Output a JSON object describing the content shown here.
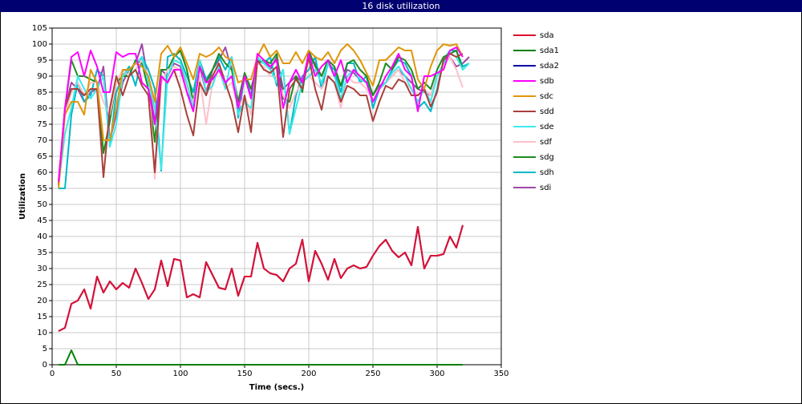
{
  "chart_data": {
    "type": "line",
    "title": "16 disk utilization",
    "x_label": "Time (secs.)",
    "y_label": "Utilization",
    "xlim": [
      0,
      350
    ],
    "xticks": [
      0,
      50,
      100,
      150,
      200,
      250,
      300,
      350
    ],
    "ylim": [
      0,
      105
    ],
    "yticks": [
      0,
      5,
      10,
      15,
      20,
      25,
      30,
      35,
      40,
      45,
      50,
      55,
      60,
      65,
      70,
      75,
      80,
      85,
      90,
      95,
      100,
      105
    ],
    "grid": true,
    "legend": "right",
    "x": [
      5,
      10,
      15,
      20,
      25,
      30,
      35,
      40,
      45,
      50,
      55,
      60,
      65,
      70,
      75,
      80,
      85,
      90,
      95,
      100,
      105,
      110,
      115,
      120,
      125,
      130,
      135,
      140,
      145,
      150,
      155,
      160,
      165,
      170,
      175,
      180,
      185,
      190,
      195,
      200,
      205,
      210,
      215,
      220,
      225,
      230,
      235,
      240,
      245,
      250,
      255,
      260,
      265,
      270,
      275,
      280,
      285,
      290,
      295,
      300,
      305,
      310,
      315,
      320,
      325
    ],
    "series": [
      {
        "name": "sda",
        "color": "#e0102f",
        "values": [
          10.5,
          11.5,
          19,
          20,
          23.5,
          17.5,
          27.5,
          22.5,
          26,
          23.5,
          25.5,
          24,
          30,
          25.5,
          20.5,
          23.5,
          32.5,
          24.5,
          33,
          32.5,
          21,
          22,
          21,
          32,
          28,
          24,
          23.5,
          30,
          21.5,
          27.5,
          27.5,
          38,
          30,
          28.5,
          28,
          26,
          30,
          31.5,
          39,
          26,
          35.5,
          31.5,
          26.5,
          33,
          27,
          30,
          31,
          30,
          30.5,
          34,
          37,
          39,
          35.5,
          33.5,
          35,
          31,
          43,
          30,
          34,
          34,
          34.5,
          40,
          36.5,
          43.5,
          null
        ]
      },
      {
        "name": "sda1",
        "color": "#008000",
        "values": [
          0,
          0,
          4.5,
          0,
          0,
          0,
          0,
          0,
          0,
          0,
          0,
          0,
          0,
          0,
          0,
          0,
          0,
          0,
          0,
          0,
          0,
          0,
          0,
          0,
          0,
          0,
          0,
          0,
          0,
          0,
          0,
          0,
          0,
          0,
          0,
          0,
          0,
          0,
          0,
          0,
          0,
          0,
          0,
          0,
          0,
          0,
          0,
          0,
          0,
          0,
          0,
          0,
          0,
          0,
          0,
          0,
          0,
          0,
          0,
          0,
          0,
          0,
          0,
          0,
          null
        ]
      },
      {
        "name": "sda2",
        "color": "#0000a8",
        "values": [
          10.5,
          11.5,
          19,
          20,
          23.5,
          17.5,
          27.5,
          22.5,
          26,
          23.5,
          25.5,
          24,
          30,
          25.5,
          20.5,
          23.5,
          32.5,
          24.5,
          33,
          32.5,
          21,
          22,
          21,
          32,
          28,
          24,
          23.5,
          30,
          21.5,
          27.5,
          27.5,
          38,
          30,
          28.5,
          28,
          26,
          30,
          31.5,
          39,
          26,
          35.5,
          31.5,
          26.5,
          33,
          27,
          30,
          31,
          30,
          30.5,
          34,
          37,
          39,
          35.5,
          33.5,
          35,
          31,
          43,
          30,
          34,
          34,
          34.5,
          40,
          36.5,
          43.5,
          null
        ]
      },
      {
        "name": "sdb",
        "color": "#ff00ff",
        "values": [
          57,
          80,
          96,
          97.5,
          90,
          98,
          93,
          85,
          85,
          97.5,
          96,
          97,
          97,
          88,
          86,
          75,
          90,
          88,
          92,
          92,
          85,
          79,
          93,
          88,
          89,
          92,
          88,
          90,
          80,
          90,
          83,
          97,
          95,
          93,
          95,
          80,
          88,
          92,
          88,
          97,
          90,
          93,
          95,
          90,
          95,
          88,
          92,
          90,
          88,
          82,
          86,
          90,
          93,
          97,
          92,
          90,
          79,
          90,
          90,
          91,
          92,
          98,
          99,
          96,
          null
        ]
      },
      {
        "name": "sdc",
        "color": "#e0960a",
        "values": [
          55,
          78,
          82,
          82,
          78,
          92,
          88,
          70,
          70,
          80,
          92,
          92,
          94,
          93,
          90,
          82,
          97,
          99.5,
          96,
          99,
          94,
          89,
          97,
          96,
          97,
          99,
          96,
          95,
          88,
          89,
          89,
          96,
          100,
          96,
          98,
          94,
          94,
          97.5,
          94,
          98,
          96,
          95,
          97.5,
          94,
          98,
          100,
          98,
          95,
          91,
          87,
          95,
          95,
          97,
          99,
          98,
          98,
          89,
          86,
          93,
          98,
          100,
          99.5,
          100,
          96,
          null
        ]
      },
      {
        "name": "sdd",
        "color": "#a8403a",
        "values": [
          56,
          80,
          86,
          86,
          84,
          86,
          86,
          58.5,
          80,
          90,
          84,
          90,
          92,
          87,
          84,
          60,
          90,
          88,
          92,
          86,
          78,
          71.5,
          88,
          84,
          90,
          94,
          88,
          82,
          72.5,
          84,
          72.5,
          95,
          92,
          91,
          93,
          71,
          86,
          89,
          86,
          96,
          86,
          79.5,
          90,
          88,
          82,
          87,
          86,
          84,
          84,
          76,
          82,
          87,
          86,
          89,
          88,
          84,
          84,
          86,
          80.5,
          85,
          95,
          97,
          96,
          97,
          null
        ]
      },
      {
        "name": "sde",
        "color": "#40e8e8",
        "values": [
          56,
          72,
          80,
          90,
          86,
          83,
          86,
          90,
          68,
          75,
          90,
          92,
          94,
          96,
          88,
          80,
          61,
          90,
          95,
          94,
          88,
          80,
          95,
          85,
          87,
          93,
          86,
          96,
          78,
          82,
          80,
          96,
          94,
          92,
          88,
          92,
          72,
          80,
          88,
          90,
          92,
          88,
          94,
          90,
          83,
          90,
          92,
          89,
          88,
          82,
          86,
          88,
          91,
          93,
          90,
          86,
          82,
          86,
          82,
          90,
          94,
          97,
          96,
          92,
          94
        ]
      },
      {
        "name": "sdf",
        "color": "#ffc0cb",
        "values": [
          56,
          78,
          85,
          88,
          84,
          88,
          88,
          82,
          78,
          88,
          92,
          90,
          92,
          95,
          90,
          58,
          88,
          92,
          93,
          92,
          86,
          82,
          90,
          75,
          88,
          92,
          86,
          88,
          80,
          84,
          78,
          94,
          93,
          90,
          90,
          84,
          80,
          85,
          88,
          90,
          88,
          86,
          90,
          88,
          80,
          90,
          88,
          88,
          86,
          82,
          86,
          88,
          90,
          92,
          88,
          86,
          84,
          86,
          84,
          90,
          94,
          96,
          92,
          86.5,
          null
        ]
      },
      {
        "name": "sdg",
        "color": "#1e8c1e",
        "values": [
          56,
          80,
          95,
          90,
          90,
          89,
          88,
          66,
          76,
          88,
          90,
          90,
          95,
          94,
          86,
          69.5,
          92,
          92,
          96,
          98,
          92,
          82,
          94,
          88,
          92,
          97,
          94,
          92,
          82,
          91,
          86,
          94,
          95,
          94,
          97,
          83,
          82,
          90,
          85,
          98,
          93,
          90,
          95,
          93,
          87,
          94,
          95,
          92,
          90,
          84,
          88,
          94,
          92,
          96,
          95,
          92,
          86,
          88,
          86,
          92,
          96,
          97,
          98,
          92,
          null
        ]
      },
      {
        "name": "sdh",
        "color": "#00b8c8",
        "values": [
          55,
          55,
          78,
          88,
          82,
          84,
          92,
          90,
          68,
          85,
          90,
          93,
          87,
          96,
          92,
          86,
          60.5,
          96,
          97,
          95,
          90,
          85,
          95,
          89,
          92,
          96,
          92,
          96,
          77,
          90,
          84,
          95,
          94,
          96,
          87,
          92,
          72,
          84,
          90,
          92,
          96,
          86,
          94,
          92,
          85,
          94,
          94,
          88,
          90,
          80,
          86,
          88,
          92,
          95,
          94,
          90,
          80,
          82,
          79,
          86,
          95,
          98,
          98,
          93,
          94
        ]
      },
      {
        "name": "sdi",
        "color": "#a048a8",
        "values": [
          57,
          80,
          88,
          86,
          82,
          85,
          86,
          93,
          70,
          78,
          88,
          92,
          94,
          100,
          88,
          76,
          92,
          90,
          94,
          93,
          86,
          80,
          93,
          85,
          92,
          95,
          99,
          92,
          82,
          91,
          84,
          94,
          95,
          92,
          96,
          86,
          88,
          90,
          88,
          96,
          94,
          90,
          95,
          90,
          87,
          92,
          91,
          89,
          88,
          84,
          87,
          88,
          90,
          92,
          90,
          88,
          86,
          85,
          84,
          90,
          94,
          96,
          93,
          94,
          96
        ]
      }
    ]
  }
}
